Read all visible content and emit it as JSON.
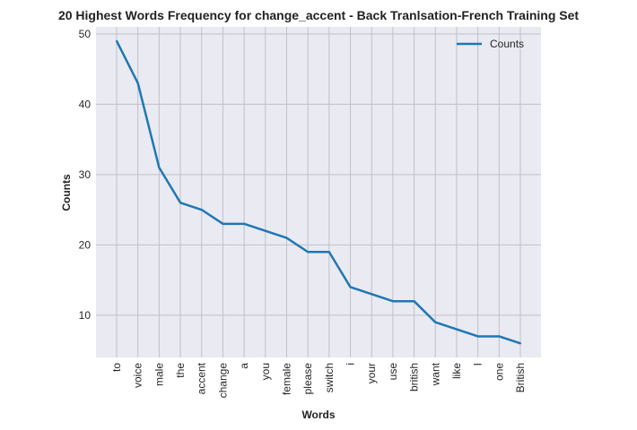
{
  "chart_data": {
    "type": "line",
    "title": "20 Highest Words Frequency for change_accent - Back Tranlsation-French Training Set",
    "xlabel": "Words",
    "ylabel": "Counts",
    "categories": [
      "to",
      "voice",
      "male",
      "the",
      "accent",
      "change",
      "a",
      "you",
      "female",
      "please",
      "switch",
      "i",
      "your",
      "use",
      "british",
      "want",
      "like",
      "I",
      "one",
      "British"
    ],
    "series": [
      {
        "name": "Counts",
        "values": [
          49,
          43,
          31,
          26,
          25,
          23,
          23,
          22,
          21,
          19,
          19,
          14,
          13,
          12,
          12,
          9,
          8,
          7,
          7,
          6
        ]
      }
    ],
    "ylim": [
      4,
      51
    ],
    "yticks": [
      10,
      20,
      30,
      40,
      50
    ],
    "grid": true,
    "legend": "top-right",
    "colors": {
      "line": "#1f77b4",
      "background": "#eaeaf2",
      "grid": "#c0c0c8"
    }
  }
}
